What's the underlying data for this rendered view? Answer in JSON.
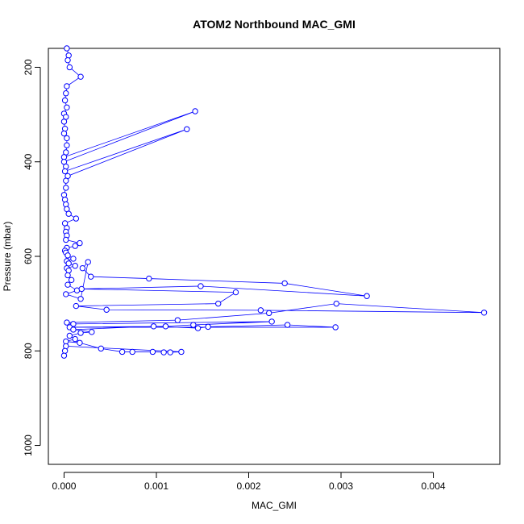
{
  "chart_data": {
    "type": "line",
    "title": "ATOM2 Northbound MAC_GMI",
    "xlabel": "MAC_GMI",
    "ylabel": "Pressure (mbar)",
    "xlim": [
      -0.00017,
      0.00472
    ],
    "ylim": [
      1040,
      160
    ],
    "y_reversed": true,
    "grid": false,
    "legend": "none",
    "line_color": "#0000ff",
    "marker": "open-circle",
    "x_ticks": [
      0.0,
      0.001,
      0.002,
      0.003,
      0.004
    ],
    "x_tick_labels": [
      "0.000",
      "0.001",
      "0.002",
      "0.003",
      "0.004"
    ],
    "y_ticks": [
      200,
      400,
      600,
      800,
      1000
    ],
    "y_tick_labels": [
      "200",
      "400",
      "600",
      "800",
      "1000"
    ],
    "series": [
      {
        "x": [
          3e-05,
          5e-05,
          4e-05,
          6e-05,
          0.00018,
          3e-05,
          2e-05,
          1e-05,
          3e-05,
          0.0,
          2e-05,
          0.0,
          1e-05,
          0.0,
          3e-05,
          3e-05,
          2e-05,
          0.0,
          0.00142,
          0.0,
          2e-05,
          1e-05,
          0.00133,
          4e-05,
          2e-05,
          2e-05,
          0.0,
          1e-05,
          2e-05,
          3e-05,
          5e-05,
          0.00013,
          1e-05,
          3e-05,
          2e-05,
          3e-05,
          2e-05,
          0.00017,
          0.00012,
          3e-05,
          1e-05,
          2e-05,
          4e-05,
          0.0001,
          3e-05,
          5e-05,
          0.00012,
          3e-05,
          5e-05,
          4e-05,
          8e-05,
          4e-05,
          0.00014,
          2e-05,
          0.00018,
          0.00026,
          0.0002,
          0.00029,
          0.00092,
          0.00239,
          0.00328,
          0.00148,
          0.00019,
          0.00186,
          0.00167,
          0.00013,
          0.00046,
          0.00213,
          0.00455,
          0.00295,
          0.00222,
          0.00123,
          3e-05,
          0.0001,
          0.00225,
          0.0014,
          0.0011,
          6e-05,
          0.00294,
          0.00242,
          0.00156,
          0.00145,
          0.00097,
          0.0001,
          0.0003,
          0.00018,
          6e-05,
          0.00012,
          2e-05,
          0.00017,
          0.0004,
          0.00063,
          0.00074,
          0.00096,
          0.00108,
          0.00115,
          0.00127,
          2e-05,
          1e-05,
          0.0
        ],
        "y": [
          160,
          175,
          185,
          200,
          220,
          240,
          255,
          270,
          285,
          298,
          305,
          315,
          330,
          340,
          350,
          365,
          380,
          390,
          293,
          400,
          410,
          420,
          331,
          430,
          440,
          455,
          470,
          480,
          490,
          500,
          510,
          520,
          530,
          540,
          548,
          556,
          565,
          572,
          578,
          582,
          588,
          592,
          598,
          605,
          610,
          615,
          620,
          625,
          630,
          640,
          650,
          660,
          672,
          680,
          690,
          612,
          625,
          643,
          647,
          657,
          684,
          663,
          669,
          676,
          700,
          705,
          713,
          714,
          719,
          700,
          720,
          735,
          740,
          743,
          738,
          745,
          748,
          750,
          750,
          745,
          749,
          752,
          748,
          755,
          760,
          762,
          768,
          775,
          780,
          783,
          795,
          802,
          802,
          802,
          803,
          803,
          802,
          790,
          800,
          810
        ]
      }
    ]
  }
}
